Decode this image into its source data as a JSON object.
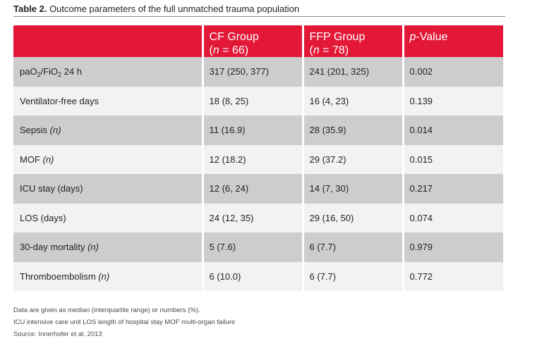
{
  "caption": {
    "label": "Table 2.",
    "text": " Outcome parameters of the full unmatched trauma population"
  },
  "table": {
    "headers": [
      {
        "line1": "",
        "line2": ""
      },
      {
        "line1": "CF Group",
        "n_prefix": "(",
        "n_var": "n",
        "n_suffix": " = 66)"
      },
      {
        "line1": "FFP Group",
        "n_prefix": "(",
        "n_var": "n",
        "n_suffix": " = 78)"
      },
      {
        "pvar": "p",
        "prest": "-Value"
      }
    ],
    "rows": [
      {
        "label_parts": [
          "paO",
          "2",
          "/FiO",
          "2",
          " 24 h"
        ],
        "cf": "317 (250, 377)",
        "ffp": "241 (201, 325)",
        "p": "0.002"
      },
      {
        "label": "Ventilator-free days",
        "cf": "18 (8, 25)",
        "ffp": "16 (4, 23)",
        "p": "0.139"
      },
      {
        "label": "Sepsis ",
        "unit": "(n)",
        "cf": "11 (16.9)",
        "ffp": "28 (35.9)",
        "p": "0.014"
      },
      {
        "label": "MOF ",
        "unit": "(n)",
        "cf": "12 (18.2)",
        "ffp": "29 (37.2)",
        "p": "0.015"
      },
      {
        "label": "ICU stay (days)",
        "cf": "12 (6, 24)",
        "ffp": "14 (7, 30)",
        "p": "0.217"
      },
      {
        "label": "LOS (days)",
        "cf": "24 (12, 35)",
        "ffp": "29 (16, 50)",
        "p": "0.074"
      },
      {
        "label": "30-day mortality ",
        "unit": "(n)",
        "cf": "5 (7.6)",
        "ffp": "6 (7.7)",
        "p": "0.979"
      },
      {
        "label": "Thromboembolism ",
        "unit": "(n)",
        "cf": "6 (10.0)",
        "ffp": "6 (7.7)",
        "p": "0.772"
      }
    ]
  },
  "footnotes": [
    "Data are given as median (interquartile range) or numbers (%).",
    "ICU intensive care unit LOS length of hospital stay MOF multi-organ failure",
    "Source: Innerhofer et al. 2013"
  ],
  "colors": {
    "header_red": "#e31837",
    "row_dark": "#cdcdcf",
    "row_light": "#f2f2f2"
  }
}
